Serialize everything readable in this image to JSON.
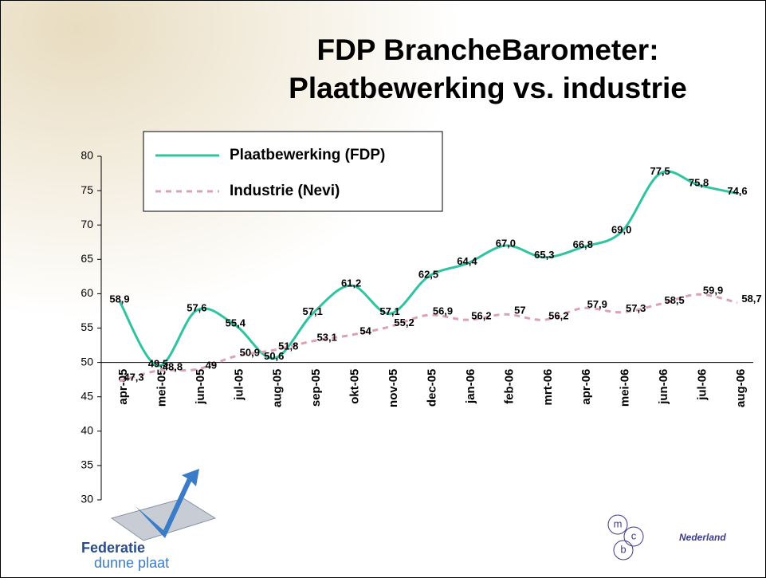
{
  "chart_data": {
    "type": "line",
    "title": [
      "FDP BrancheBarometer:",
      "Plaatbewerking vs. industrie"
    ],
    "categories": [
      "apr-05",
      "mei-05",
      "jun-05",
      "jul-05",
      "aug-05",
      "sep-05",
      "okt-05",
      "nov-05",
      "dec-05",
      "jan-06",
      "feb-06",
      "mrt-06",
      "apr-06",
      "mei-06",
      "jun-06",
      "jul-06",
      "aug-06"
    ],
    "series": [
      {
        "name": "Plaatbewerking (FDP)",
        "color": "#2ec4a0",
        "dashed": false,
        "values": [
          58.9,
          49.5,
          57.6,
          55.4,
          50.6,
          57.1,
          61.2,
          57.1,
          62.5,
          64.4,
          67.0,
          65.3,
          66.8,
          69.0,
          77.5,
          75.8,
          74.6
        ],
        "value_labels": [
          "58,9",
          "49,5",
          "57,6",
          "55,4",
          "50,6",
          "57,1",
          "61,2",
          "57,1",
          "62,5",
          "64,4",
          "67,0",
          "65,3",
          "66,8",
          "69,0",
          "77,5",
          "75,8",
          "74,6"
        ]
      },
      {
        "name": "Industrie (Nevi)",
        "color": "#d9a3b0",
        "dashed": true,
        "values": [
          47.3,
          48.8,
          49,
          50.9,
          51.8,
          53.1,
          54,
          55.2,
          56.9,
          56.2,
          57,
          56.2,
          57.9,
          57.3,
          58.5,
          59.9,
          58.7
        ],
        "value_labels": [
          "47,3",
          "48,8",
          "49",
          "50,9",
          "51,8",
          "53,1",
          "54",
          "55,2",
          "56,9",
          "56,2",
          "57",
          "56,2",
          "57,9",
          "57,3",
          "58,5",
          "59,9",
          "58,7"
        ]
      }
    ],
    "ylim": [
      30,
      80
    ],
    "yticks": [
      30,
      35,
      40,
      45,
      50,
      55,
      60,
      65,
      70,
      75,
      80
    ],
    "x_axis_at": 50,
    "grid": false
  },
  "logos": {
    "left": [
      "Federatie",
      "dunne plaat"
    ],
    "right": {
      "letters": [
        "m",
        "c",
        "b"
      ],
      "text": "Nederland"
    }
  }
}
